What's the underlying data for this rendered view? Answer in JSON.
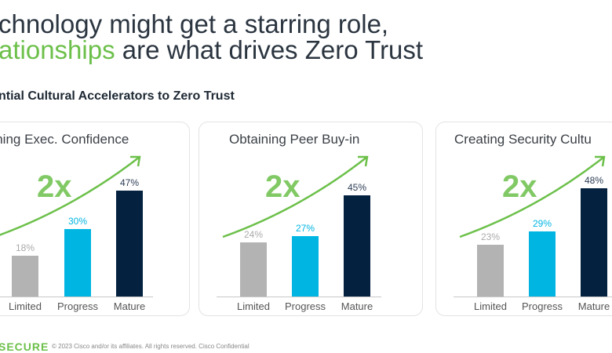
{
  "title": {
    "line1": "chnology might get a starring role,",
    "line2_highlight": "ationships",
    "line2_rest": " are what drives Zero Trust"
  },
  "subtitle": "ntial Cultural Accelerators to Zero Trust",
  "multiplier_label": "2x",
  "colors": {
    "limited": "#b3b3b3",
    "progress": "#00b5e2",
    "mature": "#04213f",
    "accent": "#6cc04a"
  },
  "chart_data": [
    {
      "type": "bar",
      "title": "aining Exec. Confidence",
      "categories": [
        "Limited",
        "Progress",
        "Mature"
      ],
      "values": [
        18,
        30,
        47
      ],
      "labels": [
        "18%",
        "30%",
        "47%"
      ]
    },
    {
      "type": "bar",
      "title": "Obtaining Peer Buy-in",
      "categories": [
        "Limited",
        "Progress",
        "Mature"
      ],
      "values": [
        24,
        27,
        45
      ],
      "labels": [
        "24%",
        "27%",
        "45%"
      ]
    },
    {
      "type": "bar",
      "title": "Creating Security Cultu",
      "categories": [
        "Limited",
        "Progress",
        "Mature"
      ],
      "values": [
        23,
        29,
        48
      ],
      "labels": [
        "23%",
        "29%",
        "48%"
      ]
    }
  ],
  "footer": {
    "brand": "SECURE",
    "copyright": "© 2023 Cisco and/or its affiliates. All rights reserved. Cisco Confidential"
  }
}
